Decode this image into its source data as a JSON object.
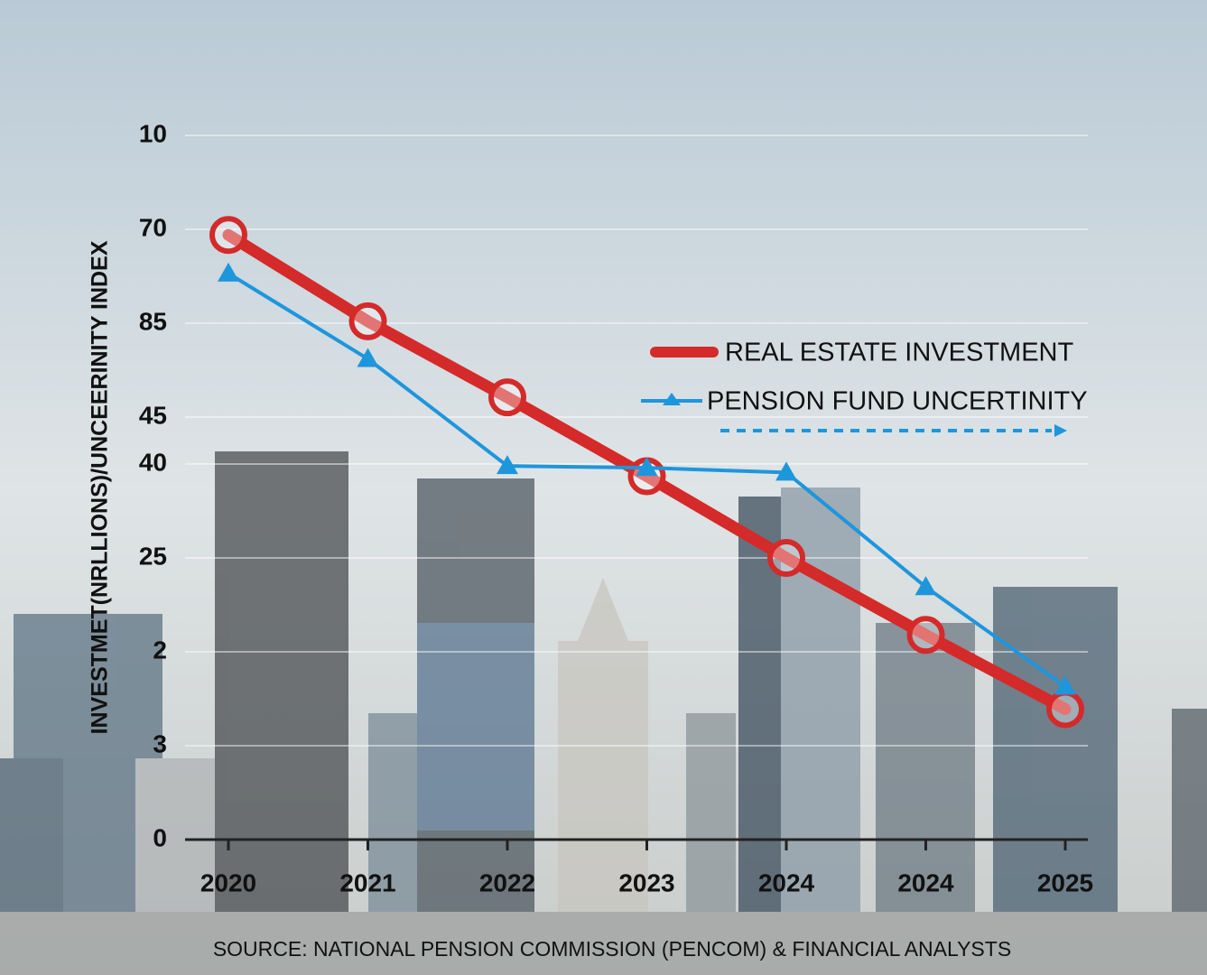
{
  "chart_data": {
    "type": "line",
    "y_label": "INVESTMET(NRLLIONS)/UNCEERINITY INDEX",
    "source": "SOURCE: NATIONAL PENSION COMMISSION (PENCOM) & FINANCIAL ANALYSTS",
    "categories": [
      "2020",
      "2021",
      "2022",
      "2023",
      "2024",
      "2024",
      "2025"
    ],
    "series": [
      {
        "name": "REAL ESTATE INVESTMENT",
        "color": "#d42a2a",
        "values": [
          6.44,
          5.52,
          4.71,
          3.87,
          3.0,
          2.18,
          1.39
        ]
      },
      {
        "name": "PENSION FUND UNCERTINITY",
        "color": "#1e96dc",
        "values": [
          6.03,
          5.12,
          3.98,
          3.96,
          3.91,
          2.69,
          1.63
        ]
      }
    ],
    "ylim": [
      0,
      7.5
    ],
    "yticks": [
      0,
      {
        "value": 1,
        "label": "3"
      },
      2,
      {
        "value": 3,
        "label": "25"
      },
      {
        "value": 4,
        "label": "40"
      },
      {
        "value": 4.5,
        "label": "45"
      },
      {
        "value": 5.5,
        "label": "85"
      },
      {
        "value": 6.5,
        "label": "70"
      },
      {
        "value": 7.5,
        "label": "10"
      }
    ],
    "grid": true
  }
}
